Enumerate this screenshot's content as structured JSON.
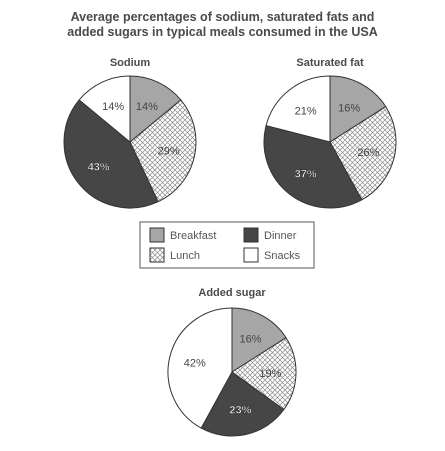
{
  "title_line1": "Average percentages of sodium, saturated fats and",
  "title_line2": "added sugars in typical meals consumed in the USA",
  "colors": {
    "Breakfast": "#a6a6a6",
    "Lunch": "crosshatch",
    "Dinner": "#464646",
    "Snacks": "#ffffff"
  },
  "chart_data": [
    {
      "type": "pie",
      "title": "Sodium",
      "slices": [
        {
          "label": "Breakfast",
          "value": 14,
          "text": "14%"
        },
        {
          "label": "Lunch",
          "value": 29,
          "text": "29%"
        },
        {
          "label": "Dinner",
          "value": 43,
          "text": "43%"
        },
        {
          "label": "Snacks",
          "value": 14,
          "text": "14%"
        }
      ]
    },
    {
      "type": "pie",
      "title": "Saturated fat",
      "slices": [
        {
          "label": "Breakfast",
          "value": 16,
          "text": "16%"
        },
        {
          "label": "Lunch",
          "value": 26,
          "text": "26%"
        },
        {
          "label": "Dinner",
          "value": 37,
          "text": "37%"
        },
        {
          "label": "Snacks",
          "value": 21,
          "text": "21%"
        }
      ]
    },
    {
      "type": "pie",
      "title": "Added sugar",
      "slices": [
        {
          "label": "Breakfast",
          "value": 16,
          "text": "16%"
        },
        {
          "label": "Lunch",
          "value": 19,
          "text": "19%"
        },
        {
          "label": "Dinner",
          "value": 23,
          "text": "23%"
        },
        {
          "label": "Snacks",
          "value": 42,
          "text": "42%"
        }
      ]
    }
  ],
  "legend": {
    "items": [
      {
        "label": "Breakfast"
      },
      {
        "label": "Dinner"
      },
      {
        "label": "Lunch"
      },
      {
        "label": "Snacks"
      }
    ]
  }
}
